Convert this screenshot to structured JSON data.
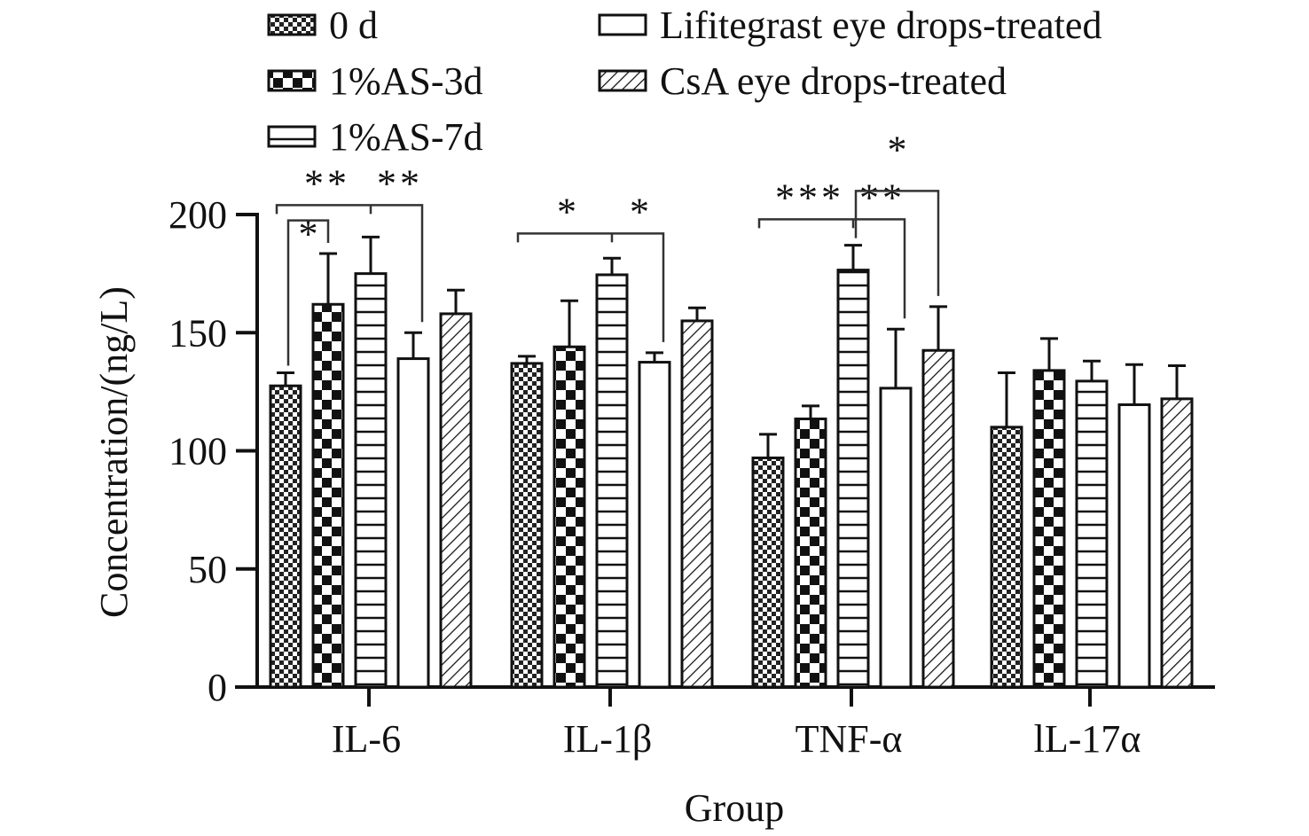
{
  "chart_data": {
    "type": "bar",
    "title": "",
    "xlabel": "Group",
    "ylabel": "Concentration/(ng/L)",
    "ylim": [
      0,
      200
    ],
    "yticks": [
      0,
      50,
      100,
      150,
      200
    ],
    "ytick_labels": [
      "0",
      "50",
      "100",
      "150",
      "200"
    ],
    "grid": false,
    "legend_position": "top",
    "categories": [
      "IL-6",
      "IL-1β",
      "TNF-α",
      "lL-17α"
    ],
    "series": [
      {
        "name": "0 d",
        "pattern": "fine-checker",
        "values": [
          127.5,
          137,
          97,
          110
        ],
        "error_upper": [
          133,
          140,
          107,
          133
        ]
      },
      {
        "name": "1%AS-3d",
        "pattern": "coarse-checker",
        "values": [
          162,
          144,
          113.5,
          134
        ],
        "error_upper": [
          183.5,
          163.5,
          119,
          147.5
        ]
      },
      {
        "name": "1%AS-7d",
        "pattern": "horizontal-lines",
        "values": [
          175,
          174.5,
          176.5,
          129.5
        ],
        "error_upper": [
          190.5,
          181.5,
          187,
          138
        ]
      },
      {
        "name": "Lifitegrast eye drops-treated",
        "pattern": "empty",
        "values": [
          139,
          137.5,
          126.5,
          119.5
        ],
        "error_upper": [
          150,
          141.5,
          151.5,
          136.5
        ]
      },
      {
        "name": "CsA eye drops-treated",
        "pattern": "diagonal-hatch",
        "values": [
          158,
          155,
          142.5,
          122
        ],
        "error_upper": [
          168,
          160.5,
          161,
          136
        ]
      }
    ],
    "annotations": [
      {
        "category": 0,
        "bars": [
          0,
          1
        ],
        "level": 197.5,
        "labels": [
          "*"
        ]
      },
      {
        "category": 0,
        "bars": [
          0,
          3
        ],
        "mid": 2,
        "level": 204,
        "labels": [
          "**",
          "**"
        ]
      },
      {
        "category": 1,
        "bars": [
          0,
          3
        ],
        "mid": 2,
        "level": 192,
        "labels": [
          "*",
          "*"
        ]
      },
      {
        "category": 2,
        "bars": [
          0,
          3
        ],
        "mid": 2,
        "level": 198,
        "labels": [
          "***",
          "**"
        ]
      },
      {
        "category": 2,
        "bars": [
          2,
          4
        ],
        "level": 210,
        "labels": [
          "*"
        ]
      }
    ]
  }
}
